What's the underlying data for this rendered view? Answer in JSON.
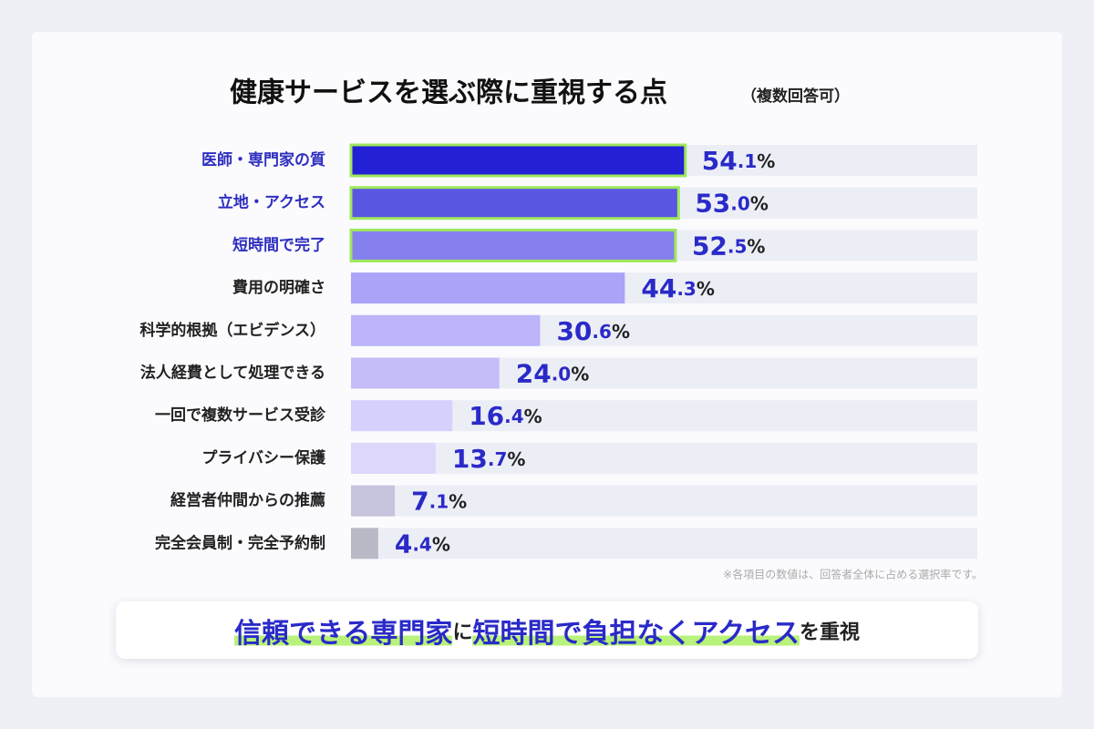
{
  "chart_data": {
    "type": "barh",
    "title": "健康サービスを選ぶ際に重視する点",
    "subtitle": "（複数回答可）",
    "categories": [
      "医師・専門家の質",
      "立地・アクセス",
      "短時間で完了",
      "費用の明確さ",
      "科学的根拠（エビデンス）",
      "法人経費として処理できる",
      "一回で複数サービス受診",
      "プライバシー保護",
      "経営者仲間からの推薦",
      "完全会員制・完全予約制"
    ],
    "values": [
      54.1,
      53.0,
      52.5,
      44.3,
      30.6,
      24.0,
      16.4,
      13.7,
      7.1,
      4.4
    ],
    "value_labels": [
      "54.1%",
      "53.0%",
      "52.5%",
      "44.3%",
      "30.6%",
      "24.0%",
      "16.4%",
      "13.7%",
      "7.1%",
      "4.4%"
    ],
    "colors": [
      "#2320d6",
      "#5b56e2",
      "#8580ee",
      "#aaa3f8",
      "#bcb5fb",
      "#c4bdf8",
      "#d6d0fc",
      "#dcd7fb",
      "#c6c3dd",
      "#b9b9c6"
    ],
    "highlight_count": 3,
    "highlight_color": "#9ee85c",
    "xlim": [
      0,
      100
    ],
    "note": "※各項目の数値は、回答者全体に占める選択率です。",
    "summary": [
      {
        "text": "信頼できる専門家",
        "emphasis": true
      },
      {
        "text": "に",
        "emphasis": false
      },
      {
        "text": "短時間で負担なくアクセス",
        "emphasis": true
      },
      {
        "text": "を重視",
        "emphasis": false
      }
    ]
  }
}
